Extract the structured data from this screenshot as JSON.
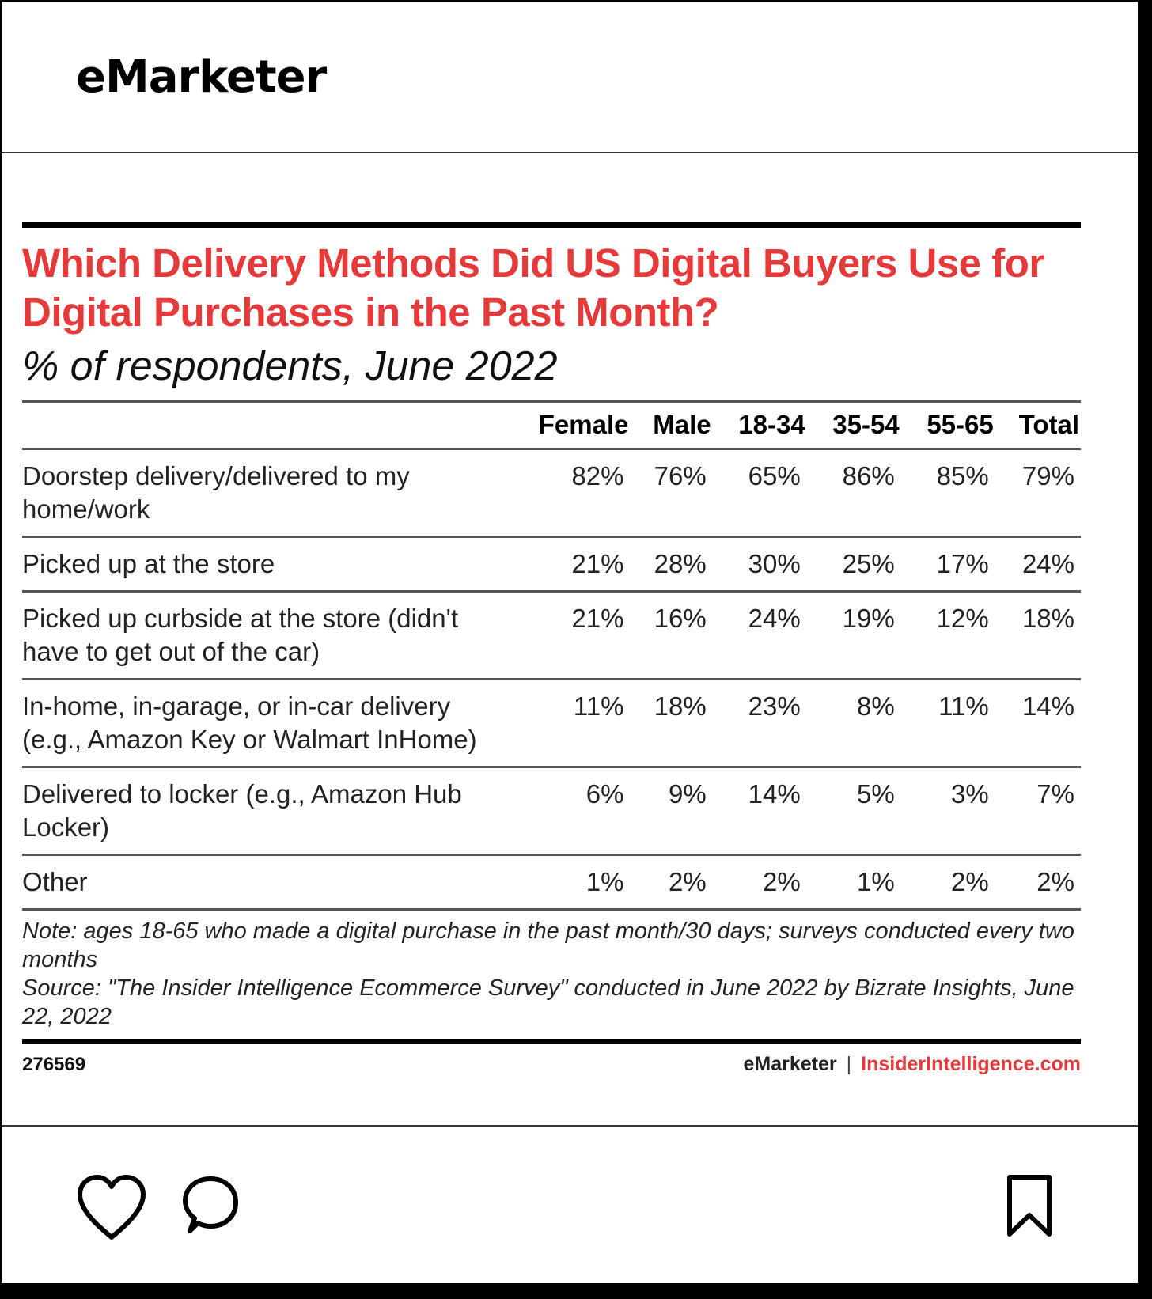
{
  "header": {
    "brand": "eMarketer"
  },
  "chart": {
    "title": "Which Delivery Methods Did US Digital Buyers Use for Digital Purchases in the Past Month?",
    "subtitle": "% of respondents, June 2022",
    "note": "Note: ages 18-65 who made a digital purchase in the past month/30 days; surveys conducted every two months",
    "source": "Source: \"The Insider Intelligence Ecommerce Survey\" conducted in June 2022 by Bizrate Insights, June 22, 2022",
    "id": "276569",
    "credit_em": "eMarketer",
    "credit_sep": "|",
    "credit_ii": "InsiderIntelligence.com"
  },
  "chart_data": {
    "type": "table",
    "columns": [
      "Female",
      "Male",
      "18-34",
      "35-54",
      "55-65",
      "Total"
    ],
    "rows": [
      {
        "label": "Doorstep delivery/delivered to my home/work",
        "values": [
          "82%",
          "76%",
          "65%",
          "86%",
          "85%",
          "79%"
        ]
      },
      {
        "label": "Picked up at the store",
        "values": [
          "21%",
          "28%",
          "30%",
          "25%",
          "17%",
          "24%"
        ]
      },
      {
        "label": "Picked up curbside at the store (didn't have to get out of the car)",
        "values": [
          "21%",
          "16%",
          "24%",
          "19%",
          "12%",
          "18%"
        ]
      },
      {
        "label": "In-home, in-garage, or in-car delivery (e.g., Amazon Key or Walmart InHome)",
        "values": [
          "11%",
          "18%",
          "23%",
          "8%",
          "11%",
          "14%"
        ]
      },
      {
        "label": "Delivered to locker (e.g., Amazon Hub Locker)",
        "values": [
          "6%",
          "9%",
          "14%",
          "5%",
          "3%",
          "7%"
        ]
      },
      {
        "label": "Other",
        "values": [
          "1%",
          "2%",
          "2%",
          "1%",
          "2%",
          "2%"
        ]
      }
    ]
  },
  "actions": {
    "like_icon": "heart-icon",
    "comment_icon": "comment-icon",
    "save_icon": "bookmark-icon"
  }
}
